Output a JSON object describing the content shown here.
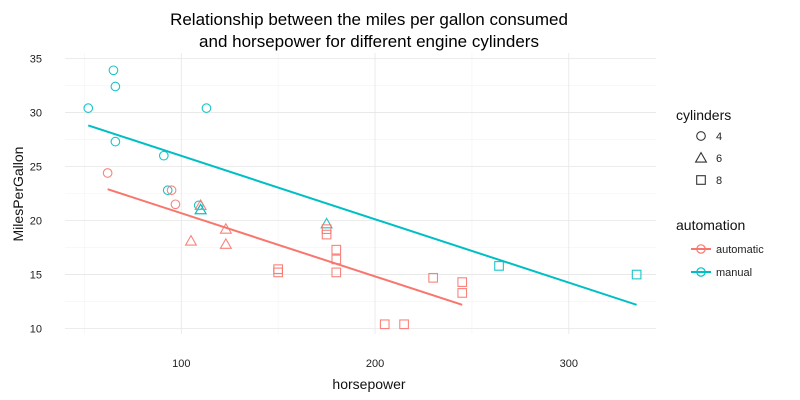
{
  "chart_data": {
    "type": "scatter",
    "title_lines": [
      "Relationship between the miles per gallon consumed",
      "and horsepower for different engine cylinders"
    ],
    "xlabel": "horsepower",
    "ylabel": "MilesPerGallon",
    "xlim": [
      40,
      345
    ],
    "ylim": [
      9.5,
      35.5
    ],
    "x_ticks": [
      100,
      200,
      300
    ],
    "y_ticks": [
      10,
      15,
      20,
      25,
      30,
      35
    ],
    "grid": true,
    "legend_placement": "right",
    "legend": {
      "shape_title": "cylinders",
      "shape_entries": [
        {
          "label": "4",
          "shape": "circle"
        },
        {
          "label": "6",
          "shape": "triangle"
        },
        {
          "label": "8",
          "shape": "square"
        }
      ],
      "color_title": "automation",
      "color_entries": [
        {
          "label": "automatic",
          "color": "#F8766D"
        },
        {
          "label": "manual",
          "color": "#00BFC4"
        }
      ]
    },
    "colors": {
      "automatic": "#F8766D",
      "manual": "#00BFC4"
    },
    "points": [
      {
        "x": 52,
        "y": 30.4,
        "cyl": "4",
        "am": "manual"
      },
      {
        "x": 65,
        "y": 33.9,
        "cyl": "4",
        "am": "manual"
      },
      {
        "x": 66,
        "y": 32.4,
        "cyl": "4",
        "am": "manual"
      },
      {
        "x": 66,
        "y": 27.3,
        "cyl": "4",
        "am": "manual"
      },
      {
        "x": 91,
        "y": 26.0,
        "cyl": "4",
        "am": "manual"
      },
      {
        "x": 93,
        "y": 22.8,
        "cyl": "4",
        "am": "manual"
      },
      {
        "x": 109,
        "y": 21.4,
        "cyl": "4",
        "am": "manual"
      },
      {
        "x": 113,
        "y": 30.4,
        "cyl": "4",
        "am": "manual"
      },
      {
        "x": 62,
        "y": 24.4,
        "cyl": "4",
        "am": "automatic"
      },
      {
        "x": 95,
        "y": 22.8,
        "cyl": "4",
        "am": "automatic"
      },
      {
        "x": 97,
        "y": 21.5,
        "cyl": "4",
        "am": "automatic"
      },
      {
        "x": 110,
        "y": 21.0,
        "cyl": "6",
        "am": "manual"
      },
      {
        "x": 110,
        "y": 21.0,
        "cyl": "6",
        "am": "manual"
      },
      {
        "x": 175,
        "y": 19.7,
        "cyl": "6",
        "am": "manual"
      },
      {
        "x": 105,
        "y": 18.1,
        "cyl": "6",
        "am": "automatic"
      },
      {
        "x": 110,
        "y": 21.4,
        "cyl": "6",
        "am": "automatic"
      },
      {
        "x": 123,
        "y": 19.2,
        "cyl": "6",
        "am": "automatic"
      },
      {
        "x": 123,
        "y": 17.8,
        "cyl": "6",
        "am": "automatic"
      },
      {
        "x": 264,
        "y": 15.8,
        "cyl": "8",
        "am": "manual"
      },
      {
        "x": 335,
        "y": 15.0,
        "cyl": "8",
        "am": "manual"
      },
      {
        "x": 150,
        "y": 15.5,
        "cyl": "8",
        "am": "automatic"
      },
      {
        "x": 150,
        "y": 15.2,
        "cyl": "8",
        "am": "automatic"
      },
      {
        "x": 175,
        "y": 18.7,
        "cyl": "8",
        "am": "automatic"
      },
      {
        "x": 175,
        "y": 19.2,
        "cyl": "8",
        "am": "automatic"
      },
      {
        "x": 180,
        "y": 16.4,
        "cyl": "8",
        "am": "automatic"
      },
      {
        "x": 180,
        "y": 17.3,
        "cyl": "8",
        "am": "automatic"
      },
      {
        "x": 180,
        "y": 15.2,
        "cyl": "8",
        "am": "automatic"
      },
      {
        "x": 205,
        "y": 10.4,
        "cyl": "8",
        "am": "automatic"
      },
      {
        "x": 215,
        "y": 10.4,
        "cyl": "8",
        "am": "automatic"
      },
      {
        "x": 230,
        "y": 14.7,
        "cyl": "8",
        "am": "automatic"
      },
      {
        "x": 245,
        "y": 13.3,
        "cyl": "8",
        "am": "automatic"
      },
      {
        "x": 245,
        "y": 14.3,
        "cyl": "8",
        "am": "automatic"
      }
    ],
    "fit_lines": [
      {
        "am": "automatic",
        "x": [
          62,
          245
        ],
        "y": [
          22.9,
          12.2
        ]
      },
      {
        "am": "manual",
        "x": [
          52,
          335
        ],
        "y": [
          28.8,
          12.2
        ]
      }
    ]
  }
}
